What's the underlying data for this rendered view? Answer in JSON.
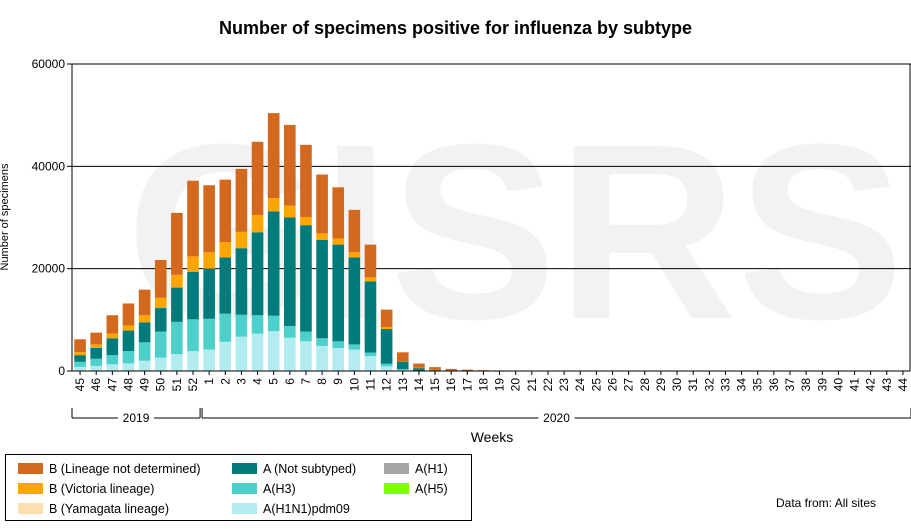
{
  "chart_data": {
    "type": "bar",
    "stacked": true,
    "title": "Number of specimens positive for influenza by subtype",
    "xlabel": "Weeks",
    "ylabel": "Number of specimens",
    "ylim": [
      0,
      60000
    ],
    "yticks": [
      0,
      20000,
      40000,
      60000
    ],
    "grid": true,
    "watermark": "GISRS",
    "categories": [
      "45",
      "46",
      "47",
      "48",
      "49",
      "50",
      "51",
      "52",
      "1",
      "2",
      "3",
      "4",
      "5",
      "6",
      "7",
      "8",
      "9",
      "10",
      "11",
      "12",
      "13",
      "14",
      "15",
      "16",
      "17",
      "18",
      "19",
      "20",
      "21",
      "22",
      "23",
      "24",
      "25",
      "26",
      "27",
      "28",
      "29",
      "30",
      "31",
      "32",
      "33",
      "34",
      "35",
      "36",
      "37",
      "38",
      "39",
      "40",
      "41",
      "42",
      "43",
      "44"
    ],
    "year_groups": [
      {
        "label": "2019",
        "start": 0,
        "end": 7
      },
      {
        "label": "2020",
        "start": 8,
        "end": 51
      }
    ],
    "series": [
      {
        "name": "A(H1N1)pdm09",
        "color": "#b2ebf0",
        "values": [
          800,
          1000,
          1300,
          1500,
          2000,
          2600,
          3300,
          3900,
          4200,
          5700,
          6700,
          7300,
          7800,
          6500,
          5800,
          4900,
          4500,
          4200,
          2900,
          900,
          200,
          50,
          20,
          10,
          5,
          0,
          0,
          0,
          0,
          0,
          0,
          0,
          0,
          0,
          0,
          0,
          0,
          0,
          0,
          0,
          0,
          0,
          0,
          0,
          0,
          0,
          0,
          0,
          0,
          0,
          0,
          0
        ]
      },
      {
        "name": "A(H1)",
        "color": "#a6a6a6",
        "values": [
          0,
          0,
          0,
          0,
          0,
          0,
          0,
          0,
          0,
          0,
          0,
          0,
          0,
          0,
          0,
          0,
          0,
          0,
          0,
          0,
          0,
          0,
          0,
          0,
          0,
          0,
          0,
          0,
          0,
          0,
          0,
          0,
          0,
          0,
          0,
          0,
          0,
          0,
          0,
          0,
          0,
          0,
          0,
          0,
          0,
          0,
          0,
          0,
          0,
          0,
          0,
          0
        ]
      },
      {
        "name": "A(H3)",
        "color": "#4dd0cc",
        "values": [
          1000,
          1400,
          1800,
          2400,
          3600,
          5100,
          6300,
          6200,
          6000,
          5500,
          4300,
          3600,
          3000,
          2300,
          1900,
          1500,
          1300,
          1000,
          700,
          500,
          150,
          50,
          20,
          10,
          0,
          0,
          0,
          0,
          0,
          0,
          0,
          0,
          0,
          0,
          0,
          0,
          0,
          0,
          0,
          0,
          0,
          0,
          0,
          0,
          0,
          0,
          0,
          0,
          0,
          0,
          0,
          0
        ]
      },
      {
        "name": "A(H5)",
        "color": "#80ff00",
        "values": [
          0,
          0,
          0,
          0,
          0,
          0,
          0,
          0,
          0,
          0,
          0,
          0,
          0,
          0,
          0,
          0,
          0,
          0,
          0,
          0,
          0,
          0,
          0,
          0,
          0,
          0,
          0,
          0,
          0,
          0,
          0,
          0,
          0,
          0,
          0,
          0,
          0,
          0,
          0,
          0,
          0,
          0,
          0,
          0,
          0,
          0,
          0,
          0,
          0,
          0,
          0,
          0
        ]
      },
      {
        "name": "A (Not subtyped)",
        "color": "#007b7b",
        "values": [
          1300,
          2100,
          3300,
          4000,
          3900,
          4600,
          6700,
          9300,
          9800,
          11000,
          13000,
          16200,
          20400,
          21200,
          20800,
          19200,
          18900,
          17000,
          13900,
          6800,
          1500,
          500,
          200,
          80,
          50,
          20,
          10,
          0,
          0,
          0,
          0,
          0,
          0,
          0,
          0,
          0,
          0,
          0,
          0,
          0,
          0,
          0,
          0,
          0,
          0,
          0,
          0,
          0,
          0,
          0,
          0,
          0
        ]
      },
      {
        "name": "B (Yamagata lineage)",
        "color": "#ffdfb0",
        "values": [
          0,
          0,
          0,
          0,
          0,
          0,
          0,
          0,
          0,
          0,
          0,
          0,
          0,
          0,
          0,
          0,
          0,
          0,
          0,
          0,
          0,
          0,
          0,
          0,
          0,
          0,
          0,
          0,
          0,
          0,
          0,
          0,
          0,
          0,
          0,
          0,
          0,
          0,
          0,
          0,
          0,
          0,
          0,
          0,
          0,
          0,
          0,
          0,
          0,
          0,
          0,
          0
        ]
      },
      {
        "name": "B (Victoria lineage)",
        "color": "#ffa500",
        "values": [
          600,
          700,
          900,
          1000,
          1400,
          2000,
          2500,
          3000,
          3200,
          3000,
          3200,
          3400,
          2600,
          2300,
          1600,
          1300,
          1200,
          1000,
          800,
          400,
          100,
          50,
          20,
          10,
          0,
          0,
          0,
          0,
          0,
          0,
          0,
          0,
          0,
          0,
          0,
          0,
          0,
          0,
          0,
          0,
          0,
          0,
          0,
          0,
          0,
          0,
          0,
          0,
          0,
          0,
          0,
          0
        ]
      },
      {
        "name": "B (Lineage not determined)",
        "color": "#d2691e",
        "values": [
          2500,
          2300,
          3600,
          4300,
          5000,
          7400,
          12100,
          14800,
          13100,
          12200,
          12300,
          14300,
          16600,
          15800,
          14100,
          11500,
          10000,
          8300,
          6400,
          3400,
          1700,
          800,
          500,
          300,
          200,
          150,
          100,
          80,
          60,
          50,
          40,
          30,
          20,
          20,
          20,
          10,
          10,
          10,
          10,
          10,
          10,
          10,
          10,
          10,
          10,
          10,
          10,
          10,
          10,
          10,
          10,
          10
        ]
      }
    ]
  },
  "legend": {
    "items": [
      {
        "label": "B (Lineage not determined)",
        "color": "#d2691e"
      },
      {
        "label": "B (Victoria lineage)",
        "color": "#ffa500"
      },
      {
        "label": "B (Yamagata lineage)",
        "color": "#ffdfb0"
      },
      {
        "label": "A (Not subtyped)",
        "color": "#007b7b"
      },
      {
        "label": "A(H3)",
        "color": "#4dd0cc"
      },
      {
        "label": "A(H1N1)pdm09",
        "color": "#b2ebf0"
      },
      {
        "label": "A(H1)",
        "color": "#a6a6a6"
      },
      {
        "label": "A(H5)",
        "color": "#80ff00"
      }
    ]
  },
  "source_note": "Data from: All sites"
}
